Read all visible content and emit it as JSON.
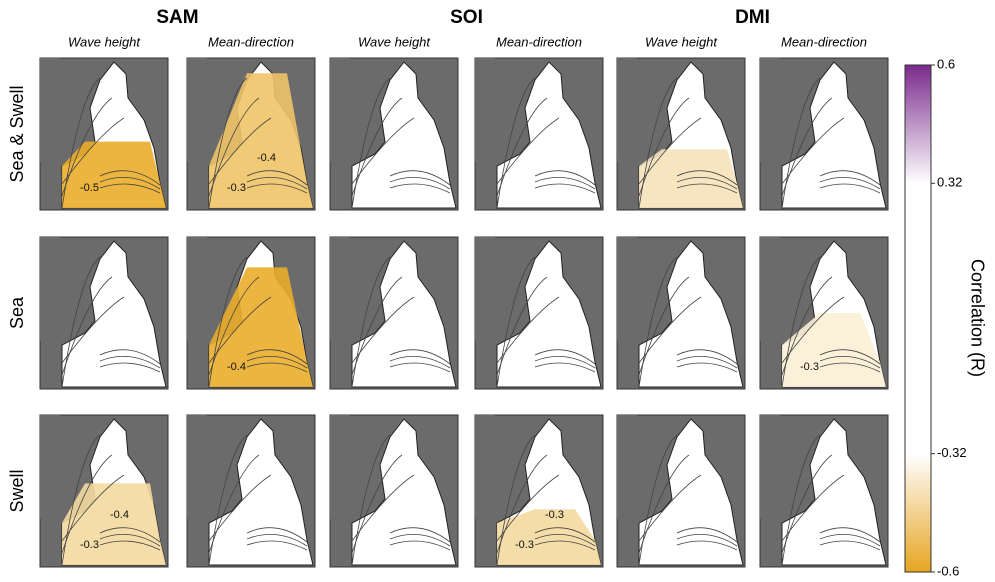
{
  "groups": [
    {
      "name": "SAM",
      "columns": [
        "Wave height",
        "Mean-direction"
      ]
    },
    {
      "name": "SOI",
      "columns": [
        "Wave height",
        "Mean-direction"
      ]
    },
    {
      "name": "DMI",
      "columns": [
        "Wave height",
        "Mean-direction"
      ]
    }
  ],
  "rows": [
    {
      "label": "Sea & Swell",
      "contour_labels": [
        [
          "-0.5"
        ],
        [
          "-0.3",
          "-0.4"
        ],
        [],
        [],
        [],
        []
      ]
    },
    {
      "label": "Sea",
      "contour_labels": [
        [],
        [
          "-0.4"
        ],
        [],
        [],
        [],
        [
          "-0.3"
        ]
      ]
    },
    {
      "label": "Swell",
      "contour_labels": [
        [
          "-0.3",
          "-0.4"
        ],
        [],
        [],
        [
          "-0.3",
          "-0.3"
        ],
        [],
        []
      ]
    }
  ],
  "colorbar": {
    "label": "Correlation (R)",
    "lim": [
      -0.6,
      0.6
    ],
    "ticks": [
      0.6,
      0.32,
      -0.32,
      -0.6
    ]
  }
}
